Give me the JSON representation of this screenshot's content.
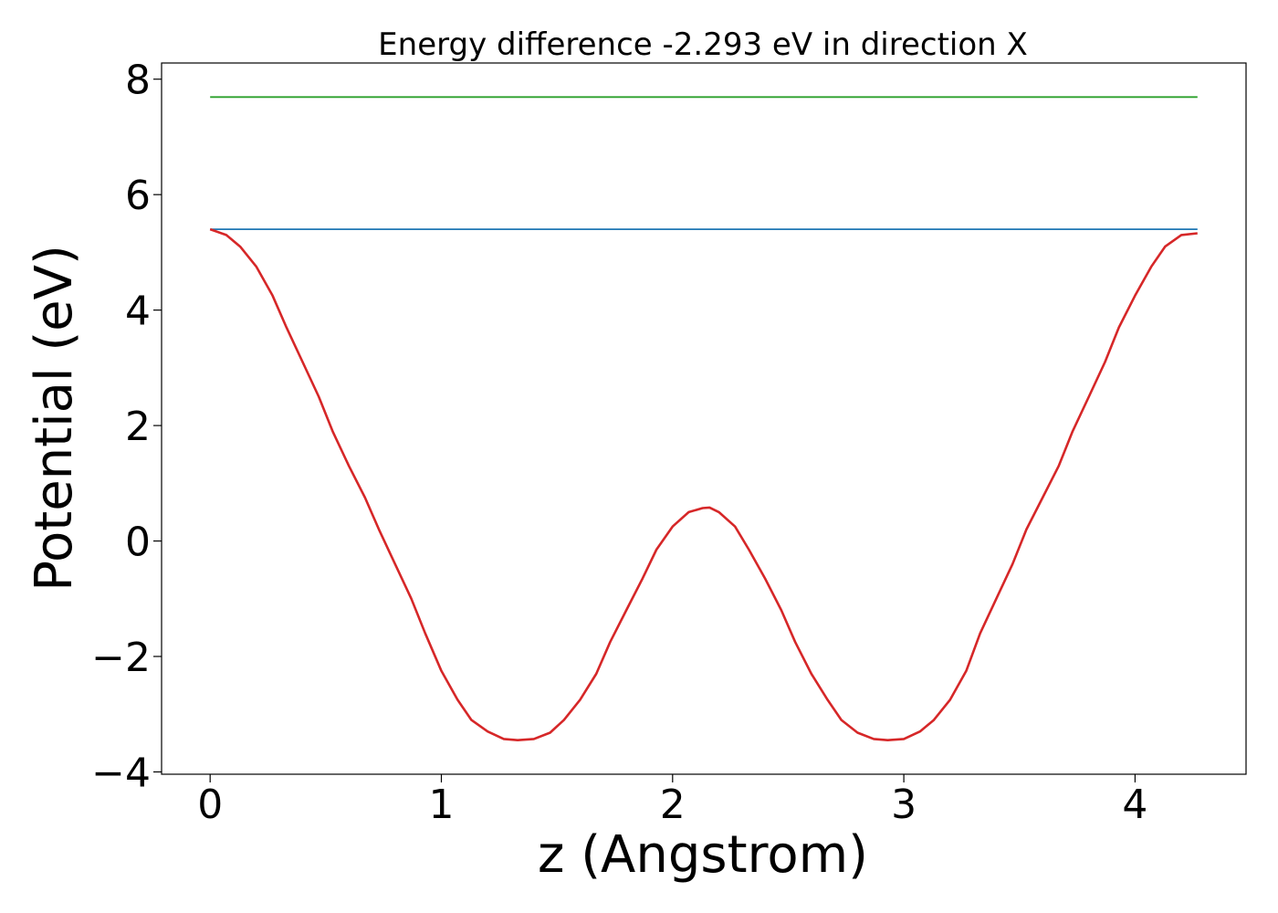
{
  "chart_data": {
    "type": "line",
    "title": "Energy difference -2.293 eV in direction X",
    "xlabel": "z (Angstrom)",
    "ylabel": "Potential (eV)",
    "xlim": [
      -0.21,
      4.48
    ],
    "ylim": [
      -4.04,
      8.28
    ],
    "xticks": [
      0,
      1,
      2,
      3,
      4
    ],
    "xtick_labels": [
      "0",
      "1",
      "2",
      "3",
      "4"
    ],
    "yticks": [
      -4,
      -2,
      0,
      2,
      4,
      6,
      8
    ],
    "ytick_labels": [
      "−4",
      "−2",
      "0",
      "2",
      "4",
      "6",
      "8"
    ],
    "grid": false,
    "legend": "none",
    "series": [
      {
        "color": "#2ca02c",
        "x": [
          0,
          4.27
        ],
        "y": [
          7.69,
          7.69
        ]
      },
      {
        "color": "#1f77b4",
        "x": [
          0,
          4.27
        ],
        "y": [
          5.4,
          5.4
        ]
      },
      {
        "color": "#d62728",
        "x": [
          0,
          0.07,
          0.13,
          0.2,
          0.27,
          0.33,
          0.4,
          0.47,
          0.53,
          0.6,
          0.67,
          0.73,
          0.8,
          0.87,
          0.93,
          1.0,
          1.07,
          1.13,
          1.2,
          1.27,
          1.33,
          1.4,
          1.47,
          1.53,
          1.6,
          1.67,
          1.73,
          1.8,
          1.87,
          1.93,
          2.0,
          2.07,
          2.13,
          2.16,
          2.2,
          2.27,
          2.33,
          2.4,
          2.47,
          2.53,
          2.6,
          2.67,
          2.73,
          2.8,
          2.87,
          2.93,
          3.0,
          3.07,
          3.13,
          3.2,
          3.27,
          3.33,
          3.4,
          3.47,
          3.53,
          3.6,
          3.67,
          3.73,
          3.8,
          3.87,
          3.93,
          4.0,
          4.07,
          4.13,
          4.2,
          4.27
        ],
        "y": [
          5.4,
          5.3,
          5.1,
          4.75,
          4.25,
          3.7,
          3.1,
          2.5,
          1.9,
          1.3,
          0.75,
          0.2,
          -0.4,
          -1.0,
          -1.6,
          -2.25,
          -2.75,
          -3.1,
          -3.3,
          -3.43,
          -3.45,
          -3.43,
          -3.32,
          -3.1,
          -2.75,
          -2.3,
          -1.75,
          -1.2,
          -0.65,
          -0.15,
          0.25,
          0.5,
          0.57,
          0.58,
          0.5,
          0.25,
          -0.15,
          -0.65,
          -1.2,
          -1.75,
          -2.3,
          -2.75,
          -3.1,
          -3.32,
          -3.43,
          -3.45,
          -3.43,
          -3.3,
          -3.1,
          -2.75,
          -2.25,
          -1.6,
          -1.0,
          -0.4,
          0.2,
          0.75,
          1.3,
          1.9,
          2.5,
          3.1,
          3.7,
          4.25,
          4.75,
          5.1,
          5.3,
          5.33
        ]
      }
    ]
  }
}
